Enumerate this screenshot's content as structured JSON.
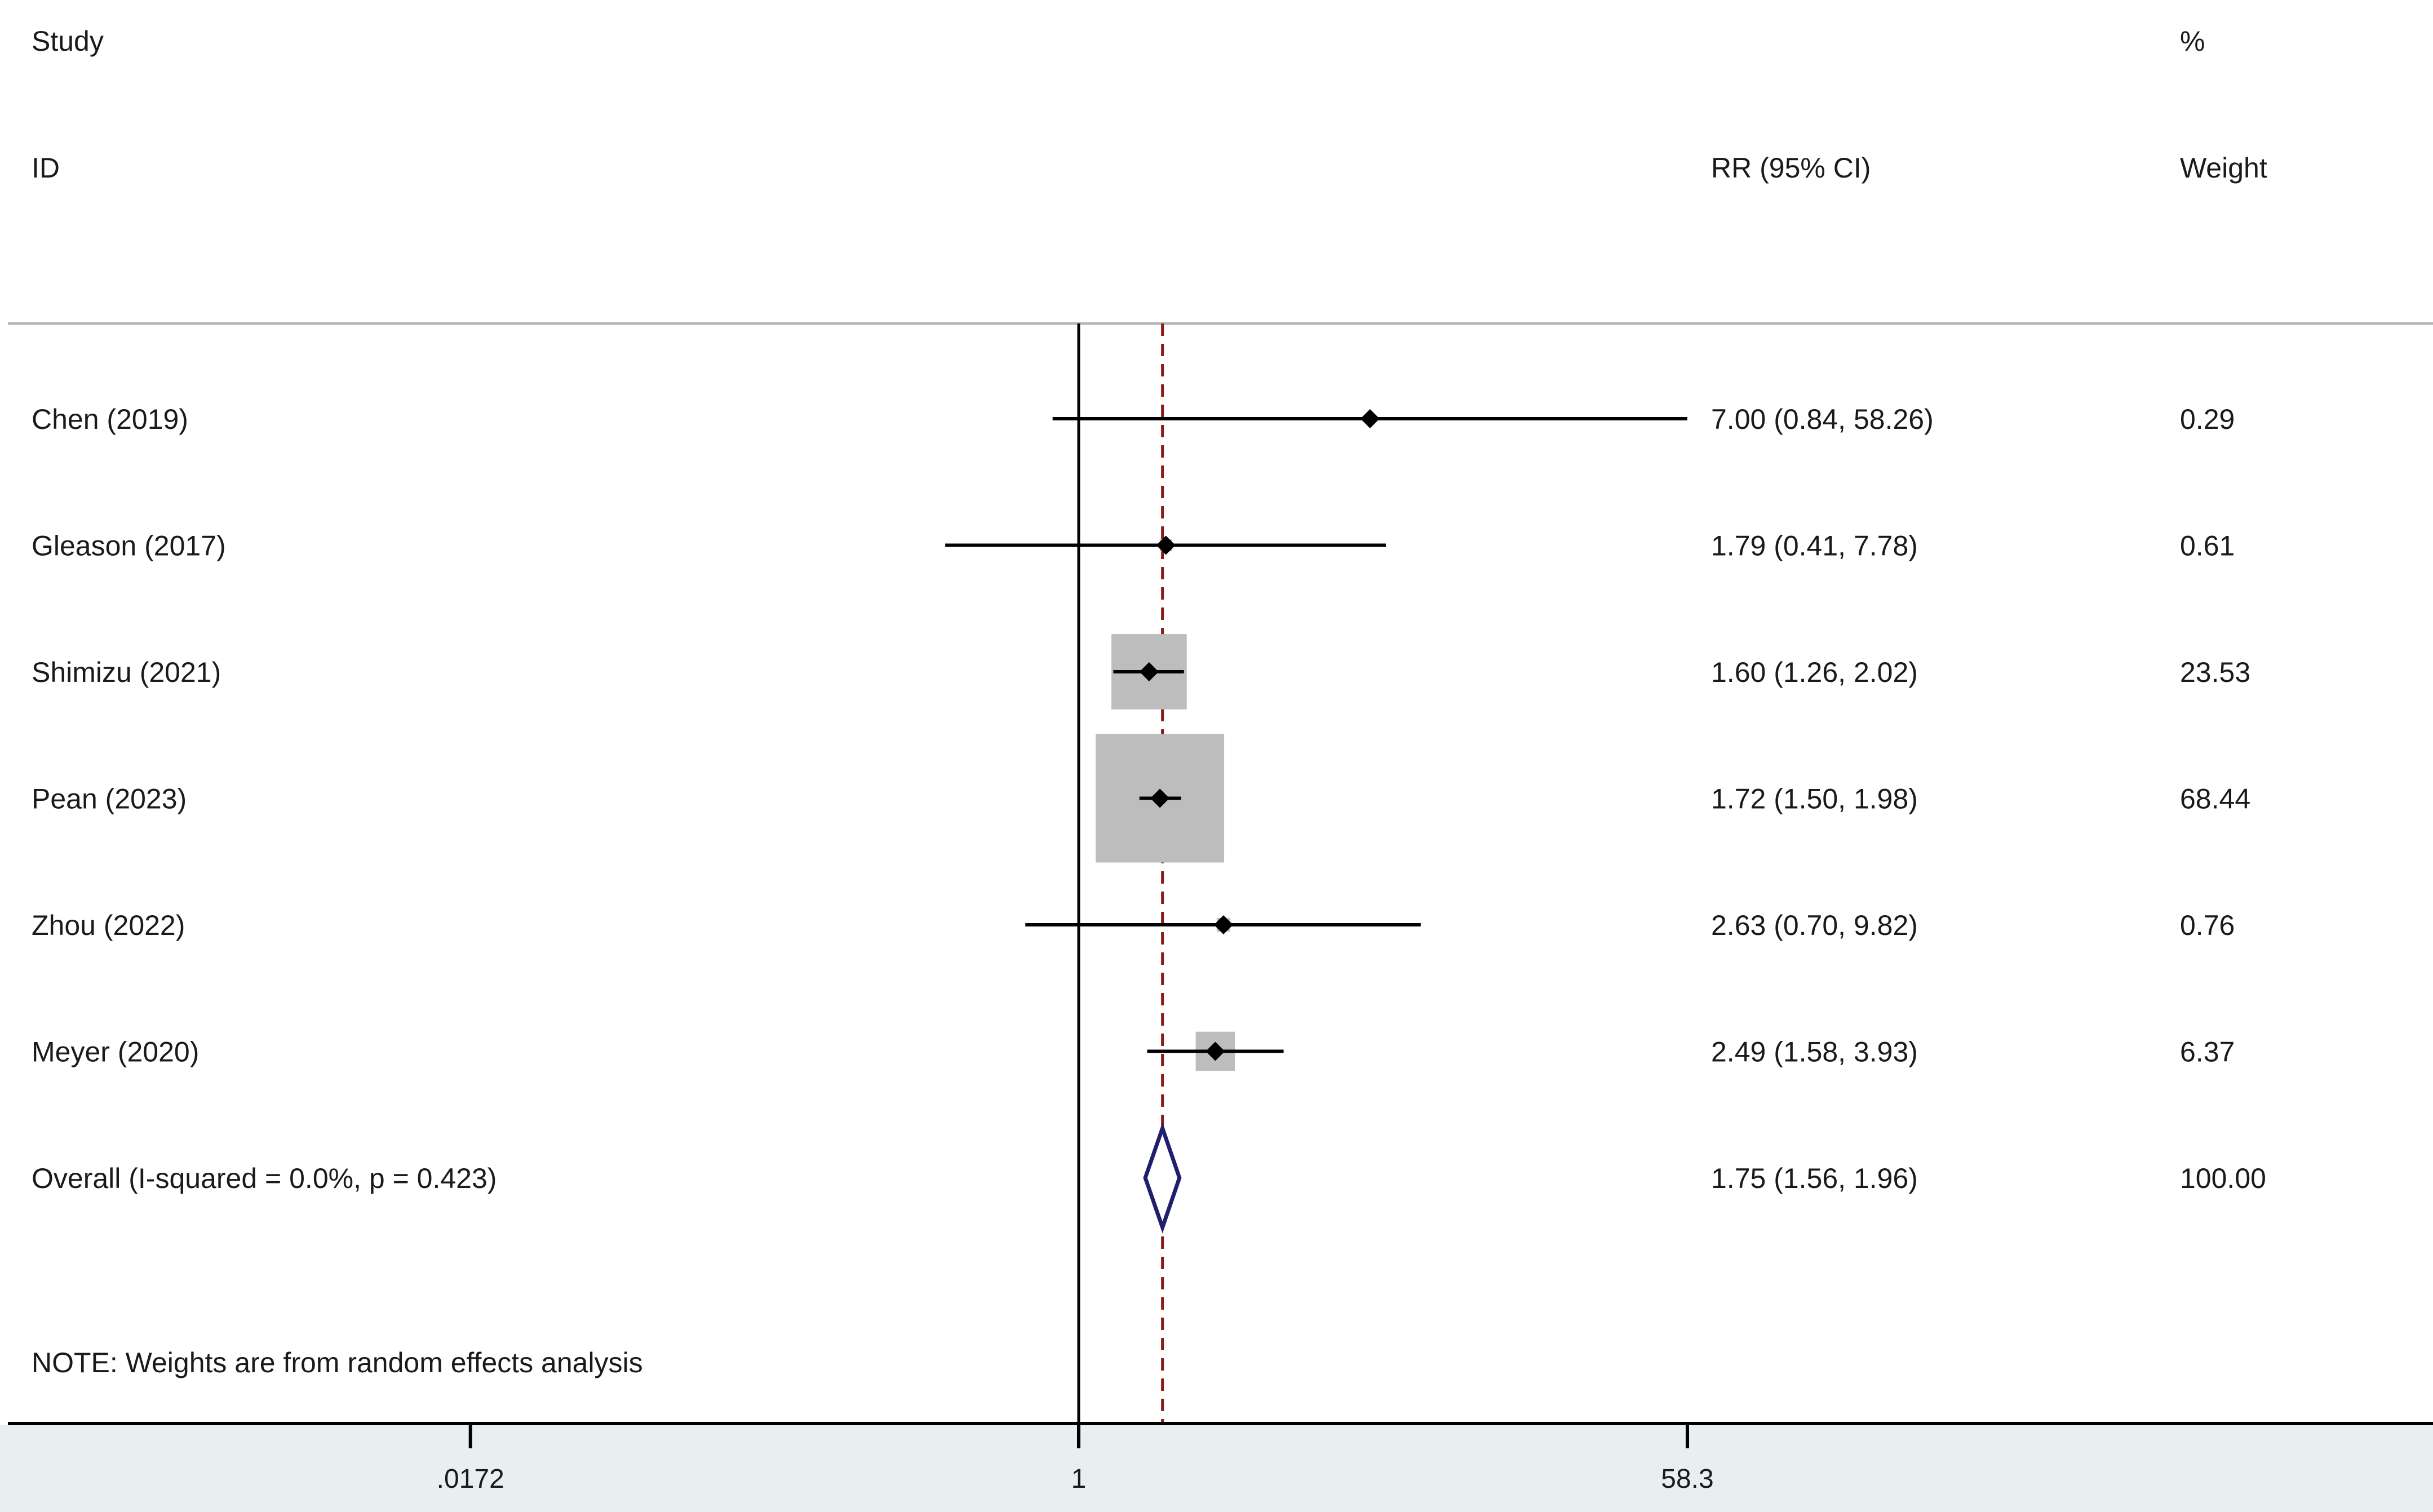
{
  "chart_data": {
    "type": "forest",
    "scale": "log",
    "headers": {
      "study_line1": "Study",
      "study_line2": "ID",
      "effect": "RR (95% CI)",
      "weight_line1": "%",
      "weight_line2": "Weight"
    },
    "studies": [
      {
        "label": "Chen (2019)",
        "rr": 7.0,
        "lower": 0.84,
        "upper": 58.26,
        "ci_text": "7.00 (0.84, 58.26)",
        "weight": 0.29,
        "weight_text": "0.29"
      },
      {
        "label": "Gleason (2017)",
        "rr": 1.79,
        "lower": 0.41,
        "upper": 7.78,
        "ci_text": "1.79 (0.41, 7.78)",
        "weight": 0.61,
        "weight_text": "0.61"
      },
      {
        "label": "Shimizu (2021)",
        "rr": 1.6,
        "lower": 1.26,
        "upper": 2.02,
        "ci_text": "1.60 (1.26, 2.02)",
        "weight": 23.53,
        "weight_text": "23.53"
      },
      {
        "label": "Pean (2023)",
        "rr": 1.72,
        "lower": 1.5,
        "upper": 1.98,
        "ci_text": "1.72 (1.50, 1.98)",
        "weight": 68.44,
        "weight_text": "68.44"
      },
      {
        "label": "Zhou (2022)",
        "rr": 2.63,
        "lower": 0.7,
        "upper": 9.82,
        "ci_text": "2.63 (0.70, 9.82)",
        "weight": 0.76,
        "weight_text": "0.76"
      },
      {
        "label": "Meyer (2020)",
        "rr": 2.49,
        "lower": 1.58,
        "upper": 3.93,
        "ci_text": "2.49 (1.58, 3.93)",
        "weight": 6.37,
        "weight_text": "6.37"
      }
    ],
    "overall": {
      "label": "Overall  (I-squared = 0.0%, p = 0.423)",
      "rr": 1.75,
      "lower": 1.56,
      "upper": 1.96,
      "ci_text": "1.75 (1.56, 1.96)",
      "weight_text": "100.00"
    },
    "note": "NOTE: Weights are from random effects analysis",
    "x_ticks": [
      {
        "value": 0.0172,
        "label": ".0172"
      },
      {
        "value": 1,
        "label": "1"
      },
      {
        "value": 58.3,
        "label": "58.3"
      }
    ],
    "null_line": 1,
    "colors": {
      "ci_line": "#000000",
      "weight_box": "#bdbdbd",
      "overall_diamond": "#1f1f6e",
      "overall_line": "#8b1a1a",
      "axis_band": "#e8eff1"
    }
  }
}
